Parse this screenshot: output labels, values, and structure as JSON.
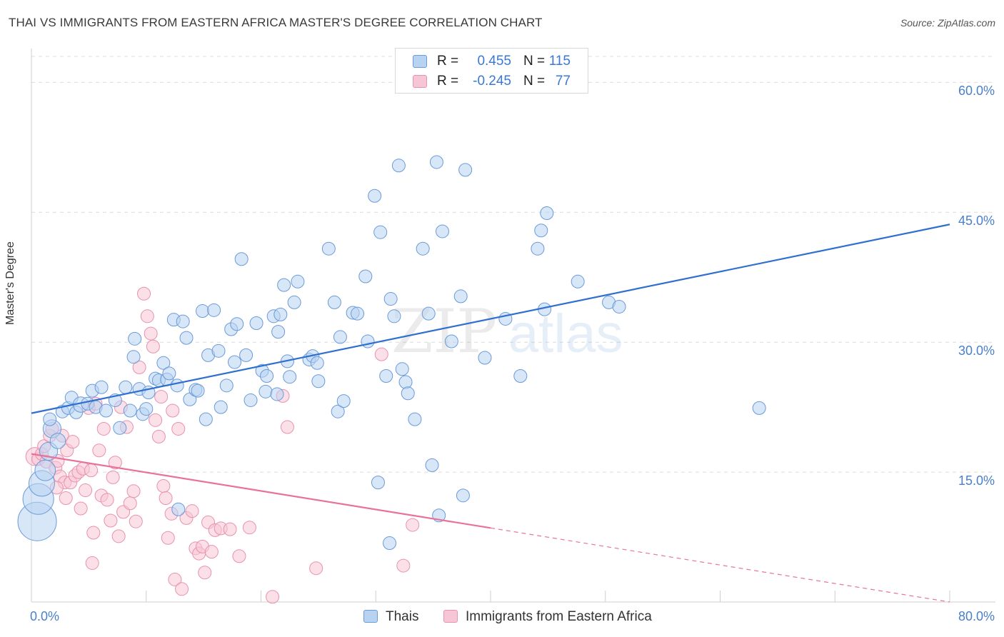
{
  "title": "THAI VS IMMIGRANTS FROM EASTERN AFRICA MASTER'S DEGREE CORRELATION CHART",
  "source": "Source: ZipAtlas.com",
  "watermark": {
    "zip": "ZIP",
    "atlas": "atlas"
  },
  "stats": {
    "r_label": "R =",
    "n_label": "N =",
    "rows": [
      {
        "series": "Thais",
        "r": "0.455",
        "n": "115",
        "color": "#3b78d4"
      },
      {
        "series": "Immigrants from Eastern Africa",
        "r": "-0.245",
        "n": "77",
        "color": "#e8729a"
      }
    ]
  },
  "legend": [
    "Thais",
    "Immigrants from Eastern Africa"
  ],
  "colors": {
    "blue_fill": "#b8d3f2",
    "blue_stroke": "#6a9ad8",
    "blue_line": "#2f6fd0",
    "pink_fill": "#f7c6d6",
    "pink_stroke": "#e891b0",
    "pink_line": "#e8729a",
    "grid": "#dcdcdc",
    "tick_text": "#4a7fcb"
  },
  "chart_data": {
    "type": "scatter",
    "title": "THAI VS IMMIGRANTS FROM EASTERN AFRICA MASTER'S DEGREE CORRELATION CHART",
    "xlabel": "",
    "ylabel": "Master's Degree",
    "xlim": [
      0,
      80
    ],
    "ylim": [
      0,
      63
    ],
    "x_tick_labels": [
      {
        "value": 0,
        "label": "0.0%"
      },
      {
        "value": 80,
        "label": "80.0%"
      }
    ],
    "y_tick_labels": [
      {
        "value": 15,
        "label": "15.0%"
      },
      {
        "value": 30,
        "label": "30.0%"
      },
      {
        "value": 45,
        "label": "45.0%"
      },
      {
        "value": 60,
        "label": "60.0%"
      }
    ],
    "grid": true,
    "legend_position": "bottom-center",
    "series": [
      {
        "name": "Thais",
        "r": 0.455,
        "n": 115,
        "trend": {
          "x": [
            0,
            80
          ],
          "y": [
            21.8,
            43.6
          ],
          "solid_until": 80
        },
        "points": [
          [
            0.5,
            9.3,
            3
          ],
          [
            0.6,
            11.9,
            2.4
          ],
          [
            0.9,
            13.7,
            2
          ],
          [
            1.2,
            15.2,
            1.6
          ],
          [
            1.5,
            17.4,
            1.4
          ],
          [
            1.8,
            20.0,
            1.4
          ],
          [
            1.6,
            21.1,
            1
          ],
          [
            2.3,
            18.6,
            1.2
          ],
          [
            2.7,
            22.0,
            1
          ],
          [
            3.2,
            22.4,
            1
          ],
          [
            3.5,
            23.6,
            1
          ],
          [
            3.9,
            21.9,
            1
          ],
          [
            4.3,
            22.8,
            1.2
          ],
          [
            4.9,
            22.9,
            1
          ],
          [
            5.3,
            24.4,
            1
          ],
          [
            5.6,
            22.5,
            1
          ],
          [
            6.1,
            24.8,
            1
          ],
          [
            6.5,
            22.1,
            1
          ],
          [
            7.3,
            23.3,
            1
          ],
          [
            7.7,
            20.1,
            1
          ],
          [
            8.2,
            24.8,
            1
          ],
          [
            8.6,
            22.1,
            1
          ],
          [
            8.9,
            28.3,
            1
          ],
          [
            9.0,
            30.4,
            1
          ],
          [
            9.4,
            24.6,
            1
          ],
          [
            9.7,
            21.7,
            1
          ],
          [
            10.0,
            22.3,
            1
          ],
          [
            10.2,
            24.2,
            1
          ],
          [
            10.8,
            25.8,
            1
          ],
          [
            11.1,
            25.6,
            1
          ],
          [
            11.5,
            27.6,
            1
          ],
          [
            11.8,
            25.7,
            1
          ],
          [
            12.0,
            26.4,
            1
          ],
          [
            12.4,
            32.6,
            1
          ],
          [
            12.7,
            25.0,
            1
          ],
          [
            13.2,
            32.4,
            1
          ],
          [
            13.5,
            30.5,
            1
          ],
          [
            13.8,
            23.4,
            1
          ],
          [
            14.3,
            24.5,
            1
          ],
          [
            14.5,
            24.4,
            1
          ],
          [
            14.9,
            33.6,
            1
          ],
          [
            15.2,
            21.1,
            1
          ],
          [
            15.4,
            28.5,
            1
          ],
          [
            15.9,
            33.7,
            1
          ],
          [
            16.3,
            29.0,
            1
          ],
          [
            16.5,
            22.5,
            1
          ],
          [
            17.0,
            25.0,
            1
          ],
          [
            17.4,
            31.5,
            1
          ],
          [
            17.7,
            27.7,
            1
          ],
          [
            17.9,
            32.1,
            1
          ],
          [
            18.3,
            39.6,
            1
          ],
          [
            18.7,
            28.5,
            1
          ],
          [
            19.1,
            23.3,
            1
          ],
          [
            19.6,
            32.2,
            1
          ],
          [
            20.1,
            26.7,
            1
          ],
          [
            20.4,
            24.3,
            1
          ],
          [
            20.5,
            26.1,
            1
          ],
          [
            21.1,
            33.0,
            1
          ],
          [
            21.5,
            31.2,
            1
          ],
          [
            21.7,
            33.2,
            1
          ],
          [
            22.0,
            36.6,
            1
          ],
          [
            22.3,
            27.8,
            1
          ],
          [
            22.5,
            26.0,
            1
          ],
          [
            22.9,
            34.6,
            1
          ],
          [
            23.2,
            37.0,
            1
          ],
          [
            24.2,
            28.0,
            1
          ],
          [
            24.5,
            28.4,
            1
          ],
          [
            24.9,
            27.6,
            1
          ],
          [
            25.0,
            25.5,
            1
          ],
          [
            25.9,
            40.8,
            1
          ],
          [
            26.4,
            34.6,
            1
          ],
          [
            26.7,
            22.0,
            1
          ],
          [
            26.9,
            30.6,
            1
          ],
          [
            27.2,
            23.2,
            1
          ],
          [
            28.0,
            33.4,
            1
          ],
          [
            28.4,
            33.3,
            1
          ],
          [
            29.1,
            37.6,
            1
          ],
          [
            29.3,
            30.1,
            1
          ],
          [
            29.9,
            46.9,
            1
          ],
          [
            30.4,
            42.7,
            1
          ],
          [
            30.9,
            26.1,
            1
          ],
          [
            31.3,
            35.0,
            1
          ],
          [
            31.6,
            33.0,
            1
          ],
          [
            32.0,
            50.4,
            1
          ],
          [
            32.3,
            26.9,
            1
          ],
          [
            32.6,
            25.4,
            1
          ],
          [
            32.8,
            24.1,
            1
          ],
          [
            33.4,
            21.1,
            1
          ],
          [
            34.1,
            40.8,
            1
          ],
          [
            34.6,
            33.3,
            1
          ],
          [
            34.9,
            15.8,
            1
          ],
          [
            35.3,
            50.8,
            1
          ],
          [
            35.5,
            10.0,
            1
          ],
          [
            35.8,
            42.8,
            1
          ],
          [
            36.6,
            30.1,
            1
          ],
          [
            37.4,
            35.3,
            1
          ],
          [
            37.6,
            12.3,
            1
          ],
          [
            37.8,
            49.9,
            1
          ],
          [
            39.5,
            28.2,
            1
          ],
          [
            41.3,
            32.7,
            1
          ],
          [
            42.6,
            26.1,
            1
          ],
          [
            44.1,
            40.8,
            1
          ],
          [
            44.4,
            42.9,
            1
          ],
          [
            44.7,
            33.8,
            1
          ],
          [
            44.9,
            44.9,
            1
          ],
          [
            47.6,
            37.0,
            1
          ],
          [
            50.3,
            34.6,
            1
          ],
          [
            51.2,
            34.1,
            1
          ],
          [
            63.4,
            22.4,
            1
          ],
          [
            21.4,
            24.0,
            1
          ],
          [
            31.2,
            6.8,
            1
          ],
          [
            30.2,
            13.8,
            1
          ],
          [
            12.8,
            10.7,
            1
          ]
        ]
      },
      {
        "name": "Immigrants from Eastern Africa",
        "r": -0.245,
        "n": 77,
        "trend": {
          "x": [
            0,
            80
          ],
          "y": [
            17.1,
            0.0
          ],
          "solid_until": 40
        },
        "points": [
          [
            0.3,
            16.8,
            1.4
          ],
          [
            0.6,
            16.5,
            1
          ],
          [
            0.9,
            17.1,
            1
          ],
          [
            1.1,
            18.0,
            1
          ],
          [
            1.3,
            16.2,
            1
          ],
          [
            1.6,
            19.2,
            1
          ],
          [
            1.8,
            20.0,
            1
          ],
          [
            2.1,
            15.5,
            1
          ],
          [
            2.3,
            16.3,
            1
          ],
          [
            2.5,
            14.5,
            1
          ],
          [
            2.7,
            19.2,
            1
          ],
          [
            2.9,
            13.8,
            1
          ],
          [
            3.0,
            12.0,
            1
          ],
          [
            3.1,
            17.5,
            1
          ],
          [
            3.4,
            13.8,
            1
          ],
          [
            3.6,
            18.5,
            1
          ],
          [
            3.8,
            14.6,
            1
          ],
          [
            4.1,
            15.0,
            1
          ],
          [
            4.3,
            10.8,
            1
          ],
          [
            4.5,
            15.4,
            1
          ],
          [
            4.7,
            12.9,
            1
          ],
          [
            5.0,
            22.4,
            1
          ],
          [
            5.2,
            15.2,
            1
          ],
          [
            5.4,
            8.0,
            1
          ],
          [
            5.6,
            22.9,
            1
          ],
          [
            5.9,
            17.5,
            1
          ],
          [
            6.1,
            12.3,
            1
          ],
          [
            6.3,
            20.0,
            1
          ],
          [
            6.6,
            11.8,
            1
          ],
          [
            6.9,
            9.4,
            1
          ],
          [
            7.1,
            14.4,
            1
          ],
          [
            7.3,
            16.1,
            1
          ],
          [
            7.6,
            7.6,
            1
          ],
          [
            7.8,
            22.5,
            1
          ],
          [
            8.0,
            10.4,
            1
          ],
          [
            8.3,
            20.2,
            1
          ],
          [
            8.6,
            11.4,
            1
          ],
          [
            8.9,
            12.8,
            1
          ],
          [
            9.1,
            9.3,
            1
          ],
          [
            9.4,
            27.1,
            1
          ],
          [
            9.8,
            35.6,
            1
          ],
          [
            10.1,
            33.0,
            1
          ],
          [
            10.4,
            31.0,
            1
          ],
          [
            10.6,
            29.5,
            1
          ],
          [
            10.8,
            21.0,
            1
          ],
          [
            11.1,
            19.1,
            1
          ],
          [
            11.3,
            23.7,
            1
          ],
          [
            11.5,
            13.4,
            1
          ],
          [
            11.7,
            12.0,
            1
          ],
          [
            11.9,
            7.4,
            1
          ],
          [
            12.2,
            10.2,
            1
          ],
          [
            12.3,
            22.1,
            1
          ],
          [
            12.5,
            2.6,
            1
          ],
          [
            12.8,
            20.0,
            1
          ],
          [
            13.1,
            1.5,
            1
          ],
          [
            13.5,
            9.7,
            1
          ],
          [
            14.0,
            10.5,
            1
          ],
          [
            14.3,
            6.2,
            1
          ],
          [
            14.6,
            5.6,
            1
          ],
          [
            14.9,
            6.4,
            1
          ],
          [
            15.1,
            3.4,
            1
          ],
          [
            15.4,
            9.2,
            1
          ],
          [
            15.7,
            5.8,
            1
          ],
          [
            16.0,
            8.3,
            1
          ],
          [
            16.5,
            8.5,
            1
          ],
          [
            17.3,
            8.4,
            1
          ],
          [
            18.1,
            5.3,
            1
          ],
          [
            19.0,
            8.6,
            1
          ],
          [
            21.0,
            0.6,
            1
          ],
          [
            21.9,
            23.8,
            1
          ],
          [
            22.3,
            20.2,
            1
          ],
          [
            24.8,
            3.9,
            1
          ],
          [
            30.5,
            28.6,
            1
          ],
          [
            32.4,
            4.2,
            1
          ],
          [
            33.2,
            8.9,
            1
          ],
          [
            5.3,
            4.5,
            1
          ],
          [
            2.2,
            13.2,
            1
          ]
        ]
      }
    ]
  }
}
